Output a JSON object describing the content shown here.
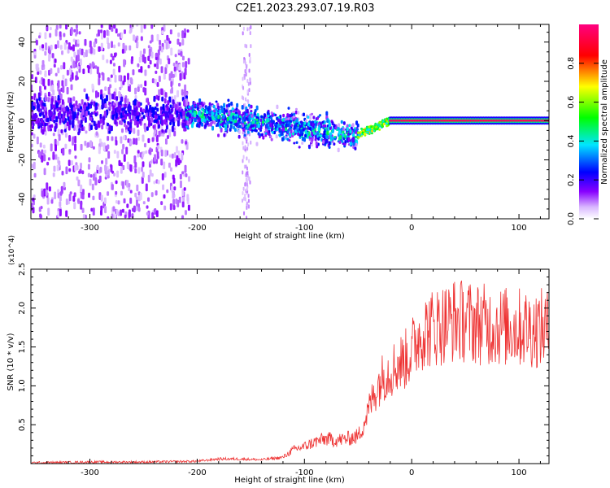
{
  "title": "C2E1.2023.293.07.19.R03",
  "chart_data": [
    {
      "type": "heatmap",
      "xlabel": "Height of straight line (km)",
      "ylabel": "Frequency (Hz)",
      "xlim": [
        -355,
        128
      ],
      "ylim": [
        -50,
        49
      ],
      "xticks": [
        -300,
        -200,
        -100,
        0,
        100
      ],
      "yticks": [
        -40,
        -20,
        0,
        20,
        40
      ],
      "colorbar": {
        "label": "Normalized spectral amplitude",
        "range": [
          0,
          1
        ],
        "ticks": [
          0.0,
          0.2,
          0.4,
          0.6,
          0.8
        ],
        "colors": [
          "#ffffff",
          "#d9b8ff",
          "#8800ff",
          "#0000ff",
          "#00e5ff",
          "#00ff00",
          "#ffff00",
          "#ff0000",
          "#ff0080"
        ]
      },
      "features": [
        {
          "x_range": [
            -355,
            -210
          ],
          "freq_center": 5,
          "amplitude": "broad scattered noise over the full frequency range"
        },
        {
          "x_range": [
            -210,
            -50
          ],
          "freq_center": "drifts from 4 to -8",
          "amplitude": 0.3
        },
        {
          "x_range": [
            -50,
            -20
          ],
          "freq_center": "rises from -7 to 0",
          "amplitude": 0.5
        },
        {
          "x_range": [
            -20,
            128
          ],
          "freq_center": 0,
          "amplitude": 0.95
        }
      ]
    },
    {
      "type": "line",
      "xlabel": "Height of straight line (km)",
      "ylabel": "SNR (10 * v/v)",
      "y_multiplier": "(x10^4)",
      "xlim": [
        -355,
        128
      ],
      "ylim": [
        0,
        2.5
      ],
      "xticks": [
        -300,
        -200,
        -100,
        0,
        100
      ],
      "yticks": [
        0.5,
        1.0,
        1.5,
        2.0,
        2.5
      ],
      "line_color": "#ee3333",
      "series": [
        {
          "x": [
            -355,
            -300,
            -250,
            -200,
            -180,
            -160,
            -140,
            -120,
            -110,
            -100,
            -90,
            -80,
            -70,
            -60,
            -50,
            -45,
            -40,
            -35,
            -30,
            -25,
            -20,
            -15,
            -10,
            -5,
            0,
            5,
            10,
            15,
            20,
            25,
            30,
            35,
            40,
            45,
            50,
            55,
            60,
            65,
            70,
            75,
            80,
            85,
            90,
            95,
            100,
            105,
            110,
            115,
            120,
            128
          ],
          "values": [
            0.01,
            0.02,
            0.02,
            0.03,
            0.06,
            0.06,
            0.05,
            0.08,
            0.18,
            0.22,
            0.28,
            0.32,
            0.3,
            0.32,
            0.35,
            0.5,
            0.7,
            0.9,
            1.05,
            1.15,
            1.2,
            1.25,
            1.3,
            1.35,
            1.45,
            1.6,
            1.7,
            1.72,
            1.75,
            1.78,
            1.8,
            1.82,
            1.85,
            1.83,
            1.85,
            1.82,
            1.8,
            1.8,
            1.78,
            1.78,
            1.77,
            1.76,
            1.76,
            1.75,
            1.75,
            1.75,
            1.74,
            1.74,
            1.74,
            1.73
          ]
        }
      ]
    }
  ]
}
